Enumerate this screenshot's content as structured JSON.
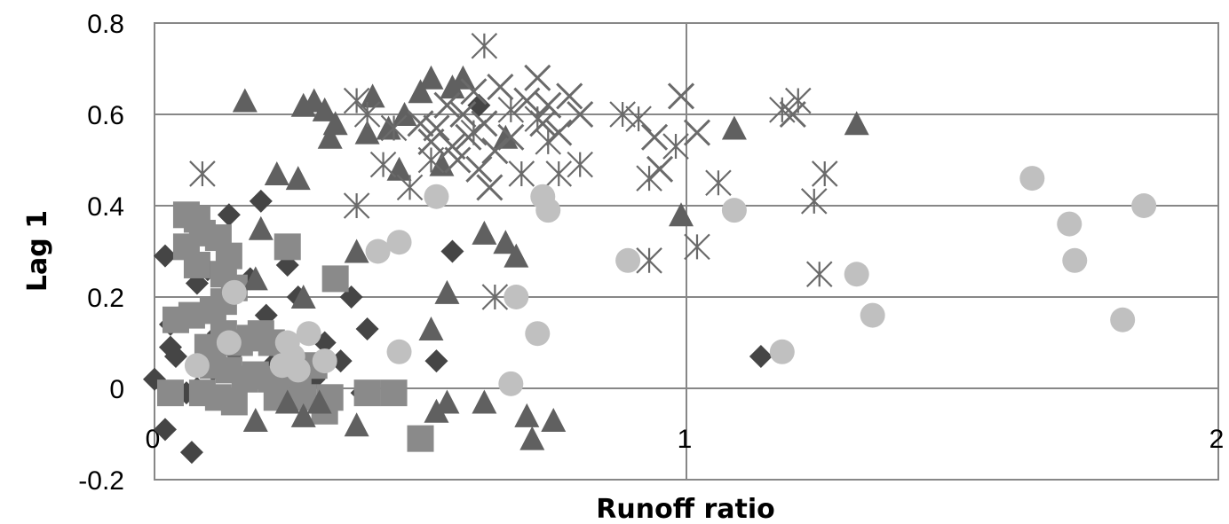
{
  "chart_data": {
    "type": "scatter",
    "title": "",
    "xlabel": "Runoff ratio",
    "ylabel": "Lag 1",
    "xlim": [
      0,
      2
    ],
    "ylim": [
      -0.2,
      0.8
    ],
    "x_ticks": [
      0,
      1,
      2
    ],
    "y_ticks": [
      -0.2,
      0,
      0.2,
      0.4,
      0.6,
      0.8
    ],
    "grid": true,
    "legend": "none",
    "series": [
      {
        "marker": "diamond",
        "color": "#454545",
        "points": [
          [
            0.0,
            0.02
          ],
          [
            0.02,
            -0.09
          ],
          [
            0.02,
            0.29
          ],
          [
            0.03,
            0.14
          ],
          [
            0.03,
            0.09
          ],
          [
            0.04,
            0.07
          ],
          [
            0.05,
            0.16
          ],
          [
            0.06,
            -0.01
          ],
          [
            0.07,
            -0.14
          ],
          [
            0.08,
            0.23
          ],
          [
            0.08,
            0.36
          ],
          [
            0.08,
            0.0
          ],
          [
            0.1,
            0.26
          ],
          [
            0.11,
            0.04
          ],
          [
            0.12,
            0.12
          ],
          [
            0.14,
            0.38
          ],
          [
            0.15,
            0.08
          ],
          [
            0.17,
            0.03
          ],
          [
            0.18,
            0.24
          ],
          [
            0.2,
            0.41
          ],
          [
            0.21,
            0.16
          ],
          [
            0.22,
            0.05
          ],
          [
            0.24,
            0.04
          ],
          [
            0.25,
            0.27
          ],
          [
            0.27,
            0.2
          ],
          [
            0.28,
            0.05
          ],
          [
            0.3,
            0.02
          ],
          [
            0.32,
            0.1
          ],
          [
            0.33,
            -0.04
          ],
          [
            0.35,
            0.06
          ],
          [
            0.37,
            0.2
          ],
          [
            0.39,
            -0.01
          ],
          [
            0.4,
            0.13
          ],
          [
            0.53,
            0.06
          ],
          [
            0.56,
            0.3
          ],
          [
            0.61,
            0.62
          ],
          [
            1.14,
            0.07
          ]
        ]
      },
      {
        "marker": "square",
        "color": "#8a8a8a",
        "points": [
          [
            0.03,
            -0.01
          ],
          [
            0.04,
            0.15
          ],
          [
            0.06,
            0.38
          ],
          [
            0.06,
            0.31
          ],
          [
            0.07,
            0.16
          ],
          [
            0.08,
            0.37
          ],
          [
            0.08,
            0.27
          ],
          [
            0.09,
            0.34
          ],
          [
            0.09,
            -0.01
          ],
          [
            0.1,
            0.09
          ],
          [
            0.11,
            0.05
          ],
          [
            0.11,
            0.17
          ],
          [
            0.12,
            0.33
          ],
          [
            0.12,
            -0.02
          ],
          [
            0.13,
            0.19
          ],
          [
            0.13,
            0.25
          ],
          [
            0.13,
            0.12
          ],
          [
            0.14,
            0.29
          ],
          [
            0.14,
            0.04
          ],
          [
            0.15,
            0.22
          ],
          [
            0.15,
            -0.03
          ],
          [
            0.16,
            0.1
          ],
          [
            0.17,
            0.02
          ],
          [
            0.18,
            0.11
          ],
          [
            0.19,
            0.03
          ],
          [
            0.2,
            0.12
          ],
          [
            0.22,
            0.02
          ],
          [
            0.22,
            0.1
          ],
          [
            0.23,
            -0.02
          ],
          [
            0.25,
            0.31
          ],
          [
            0.25,
            0.0
          ],
          [
            0.27,
            0.03
          ],
          [
            0.28,
            -0.02
          ],
          [
            0.3,
            0.05
          ],
          [
            0.32,
            -0.05
          ],
          [
            0.33,
            -0.02
          ],
          [
            0.34,
            0.24
          ],
          [
            0.4,
            -0.01
          ],
          [
            0.45,
            -0.01
          ],
          [
            0.5,
            -0.11
          ]
        ]
      },
      {
        "marker": "triangle",
        "color": "#606060",
        "points": [
          [
            0.17,
            0.63
          ],
          [
            0.19,
            0.24
          ],
          [
            0.19,
            -0.07
          ],
          [
            0.2,
            0.35
          ],
          [
            0.23,
            0.47
          ],
          [
            0.25,
            -0.03
          ],
          [
            0.27,
            0.46
          ],
          [
            0.28,
            0.62
          ],
          [
            0.28,
            0.2
          ],
          [
            0.28,
            -0.06
          ],
          [
            0.3,
            0.63
          ],
          [
            0.31,
            -0.03
          ],
          [
            0.32,
            0.61
          ],
          [
            0.33,
            0.55
          ],
          [
            0.34,
            0.58
          ],
          [
            0.38,
            0.3
          ],
          [
            0.38,
            -0.08
          ],
          [
            0.4,
            0.56
          ],
          [
            0.41,
            0.64
          ],
          [
            0.44,
            0.57
          ],
          [
            0.46,
            0.48
          ],
          [
            0.47,
            0.6
          ],
          [
            0.5,
            0.65
          ],
          [
            0.52,
            0.68
          ],
          [
            0.52,
            0.13
          ],
          [
            0.53,
            -0.05
          ],
          [
            0.54,
            0.49
          ],
          [
            0.55,
            0.21
          ],
          [
            0.55,
            -0.03
          ],
          [
            0.56,
            0.66
          ],
          [
            0.58,
            0.68
          ],
          [
            0.62,
            0.34
          ],
          [
            0.62,
            -0.03
          ],
          [
            0.66,
            0.55
          ],
          [
            0.66,
            0.32
          ],
          [
            0.68,
            0.29
          ],
          [
            0.7,
            -0.06
          ],
          [
            0.71,
            -0.11
          ],
          [
            0.75,
            -0.07
          ],
          [
            0.99,
            0.38
          ],
          [
            1.09,
            0.57
          ],
          [
            1.32,
            0.58
          ]
        ]
      },
      {
        "marker": "x",
        "color": "#6a6a6a",
        "points": [
          [
            0.5,
            0.58
          ],
          [
            0.52,
            0.54
          ],
          [
            0.53,
            0.57
          ],
          [
            0.55,
            0.62
          ],
          [
            0.56,
            0.53
          ],
          [
            0.57,
            0.5
          ],
          [
            0.58,
            0.6
          ],
          [
            0.59,
            0.55
          ],
          [
            0.6,
            0.65
          ],
          [
            0.61,
            0.48
          ],
          [
            0.62,
            0.58
          ],
          [
            0.63,
            0.44
          ],
          [
            0.64,
            0.52
          ],
          [
            0.65,
            0.66
          ],
          [
            0.67,
            0.55
          ],
          [
            0.7,
            0.63
          ],
          [
            0.72,
            0.68
          ],
          [
            0.73,
            0.58
          ],
          [
            0.74,
            0.62
          ],
          [
            0.76,
            0.56
          ],
          [
            0.78,
            0.64
          ],
          [
            0.8,
            0.6
          ],
          [
            0.94,
            0.55
          ],
          [
            0.95,
            0.48
          ],
          [
            0.99,
            0.64
          ],
          [
            1.02,
            0.56
          ],
          [
            1.2,
            0.6
          ]
        ]
      },
      {
        "marker": "asterisk",
        "color": "#6a6a6a",
        "points": [
          [
            0.09,
            0.47
          ],
          [
            0.38,
            0.4
          ],
          [
            0.38,
            0.63
          ],
          [
            0.4,
            0.6
          ],
          [
            0.43,
            0.49
          ],
          [
            0.45,
            0.57
          ],
          [
            0.48,
            0.44
          ],
          [
            0.52,
            0.5
          ],
          [
            0.6,
            0.56
          ],
          [
            0.62,
            0.75
          ],
          [
            0.64,
            0.2
          ],
          [
            0.67,
            0.61
          ],
          [
            0.69,
            0.47
          ],
          [
            0.72,
            0.59
          ],
          [
            0.74,
            0.54
          ],
          [
            0.76,
            0.47
          ],
          [
            0.8,
            0.49
          ],
          [
            0.88,
            0.6
          ],
          [
            0.91,
            0.59
          ],
          [
            0.93,
            0.46
          ],
          [
            0.93,
            0.28
          ],
          [
            0.98,
            0.53
          ],
          [
            1.02,
            0.31
          ],
          [
            1.06,
            0.45
          ],
          [
            1.18,
            0.61
          ],
          [
            1.21,
            0.63
          ],
          [
            1.24,
            0.41
          ],
          [
            1.25,
            0.25
          ],
          [
            1.26,
            0.47
          ]
        ]
      },
      {
        "marker": "circle",
        "color": "#c0c0c0",
        "points": [
          [
            0.08,
            0.05
          ],
          [
            0.14,
            0.1
          ],
          [
            0.15,
            0.21
          ],
          [
            0.24,
            0.05
          ],
          [
            0.25,
            0.1
          ],
          [
            0.26,
            0.07
          ],
          [
            0.27,
            0.04
          ],
          [
            0.29,
            0.12
          ],
          [
            0.32,
            0.06
          ],
          [
            0.42,
            0.3
          ],
          [
            0.46,
            0.32
          ],
          [
            0.46,
            0.08
          ],
          [
            0.53,
            0.42
          ],
          [
            0.67,
            0.01
          ],
          [
            0.68,
            0.2
          ],
          [
            0.72,
            0.12
          ],
          [
            0.73,
            0.42
          ],
          [
            0.74,
            0.39
          ],
          [
            0.89,
            0.28
          ],
          [
            1.09,
            0.39
          ],
          [
            1.18,
            0.08
          ],
          [
            1.32,
            0.25
          ],
          [
            1.35,
            0.16
          ],
          [
            1.65,
            0.46
          ],
          [
            1.72,
            0.36
          ],
          [
            1.73,
            0.28
          ],
          [
            1.82,
            0.15
          ],
          [
            1.86,
            0.4
          ]
        ]
      }
    ]
  }
}
